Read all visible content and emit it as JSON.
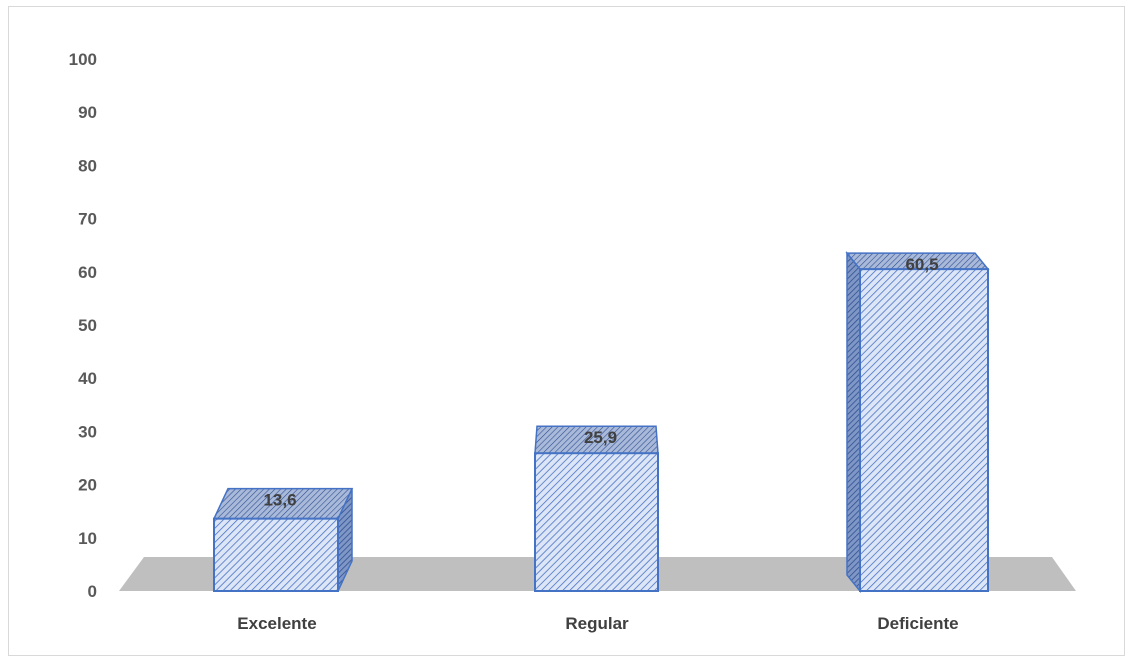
{
  "chart_data": {
    "type": "bar",
    "style": "3d-column",
    "categories": [
      "Excelente",
      "Regular",
      "Deficiente"
    ],
    "values": [
      13.6,
      25.9,
      60.5
    ],
    "value_labels": [
      "13,6",
      "25,9",
      "60,5"
    ],
    "ylim": [
      0,
      100
    ],
    "y_ticks": [
      0,
      10,
      20,
      30,
      40,
      50,
      60,
      70,
      80,
      90,
      100
    ],
    "grid": false,
    "legend": "none",
    "title": "",
    "xlabel": "",
    "ylabel": "",
    "colors": {
      "bar_fill": "#dce6f7",
      "bar_hatch": "#4a72c4",
      "bar_edge": "#4472c4",
      "bar_dark": "#2f4f8f",
      "floor": "#bfbfbf"
    }
  }
}
